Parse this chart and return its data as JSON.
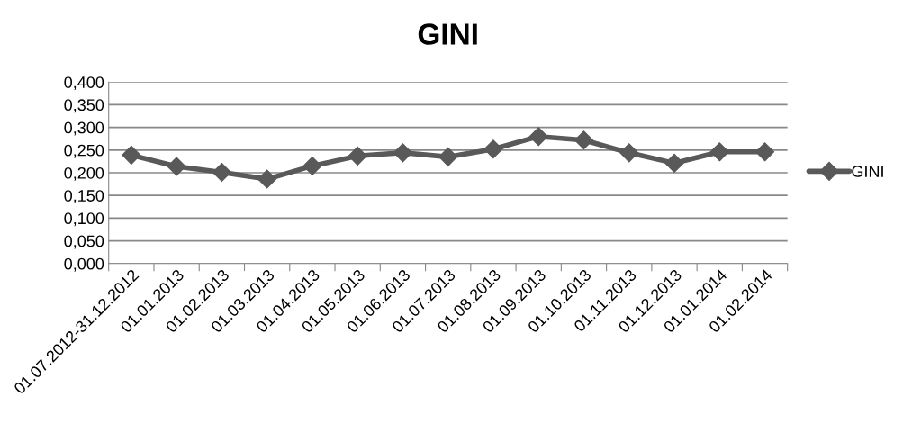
{
  "chart_data": {
    "type": "line",
    "title": "GINI",
    "categories": [
      "01.07.2012-31.12.2012",
      "01.01.2013",
      "01.02.2013",
      "01.03.2013",
      "01.04.2013",
      "01.05.2013",
      "01.06.2013",
      "01.07.2013",
      "01.08.2013",
      "01.09.2013",
      "01.10.2013",
      "01.11.2013",
      "01.12.2013",
      "01.01.2014",
      "01.02.2014"
    ],
    "series": [
      {
        "name": "GINI",
        "color": "#595959",
        "values": [
          0.239,
          0.214,
          0.201,
          0.186,
          0.215,
          0.237,
          0.244,
          0.235,
          0.252,
          0.28,
          0.272,
          0.244,
          0.221,
          0.246,
          0.246
        ]
      }
    ],
    "ylim": [
      0,
      0.4
    ],
    "yticks": [
      {
        "value": 0,
        "label": "0,000"
      },
      {
        "value": 0.05,
        "label": "0,050"
      },
      {
        "value": 0.1,
        "label": "0,100"
      },
      {
        "value": 0.15,
        "label": "0,150"
      },
      {
        "value": 0.2,
        "label": "0,200"
      },
      {
        "value": 0.25,
        "label": "0,250"
      },
      {
        "value": 0.3,
        "label": "0,300"
      },
      {
        "value": 0.35,
        "label": "0,350"
      },
      {
        "value": 0.4,
        "label": "0,400"
      }
    ],
    "grid": "y",
    "legend": "right",
    "marker": "diamond",
    "line_style": "solid"
  }
}
